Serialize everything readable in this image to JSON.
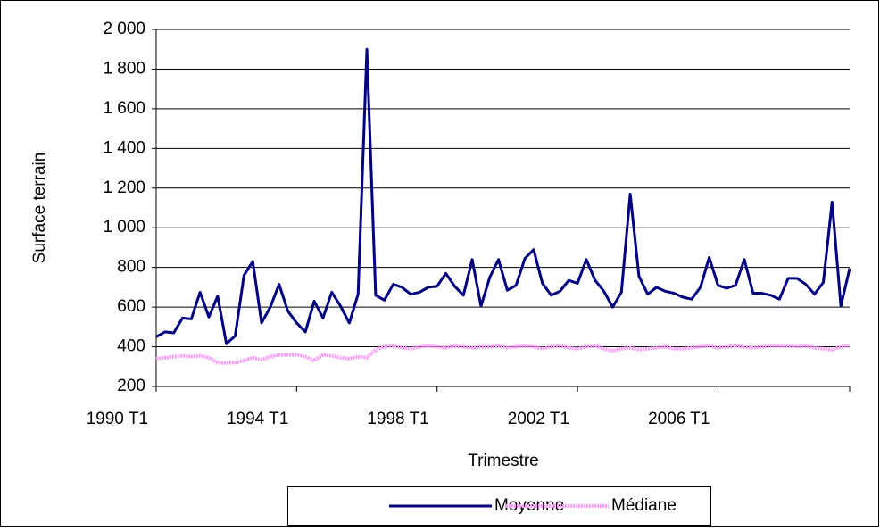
{
  "chart_data": {
    "type": "line",
    "x_label": "Trimestre",
    "y_label": "Surface terrain",
    "categories": [
      "1990 T1",
      null,
      null,
      null,
      null,
      null,
      null,
      null,
      null,
      null,
      null,
      null,
      null,
      null,
      null,
      null,
      "1994 T1",
      null,
      null,
      null,
      null,
      null,
      null,
      null,
      null,
      null,
      null,
      null,
      null,
      null,
      null,
      null,
      "1998 T1",
      null,
      null,
      null,
      null,
      null,
      null,
      null,
      null,
      null,
      null,
      null,
      null,
      null,
      null,
      null,
      "2002 T1",
      null,
      null,
      null,
      null,
      null,
      null,
      null,
      null,
      null,
      null,
      null,
      null,
      null,
      null,
      null,
      "2006 T1",
      null,
      null,
      null,
      null,
      null,
      null,
      null,
      null,
      null,
      null,
      null,
      null,
      null,
      null,
      null
    ],
    "series": [
      {
        "name": "Moyenne",
        "color": "#000080",
        "values": [
          450,
          475,
          470,
          545,
          540,
          675,
          550,
          655,
          415,
          455,
          760,
          830,
          520,
          600,
          715,
          580,
          520,
          475,
          630,
          545,
          675,
          605,
          520,
          665,
          1900,
          660,
          635,
          715,
          700,
          665,
          675,
          700,
          705,
          770,
          705,
          660,
          840,
          605,
          750,
          840,
          685,
          710,
          845,
          890,
          720,
          660,
          680,
          735,
          720,
          840,
          735,
          680,
          600,
          675,
          1170,
          755,
          665,
          700,
          680,
          670,
          650,
          640,
          700,
          850,
          710,
          695,
          710,
          840,
          670,
          670,
          660,
          640,
          745,
          745,
          715,
          665,
          725,
          1130,
          605,
          795
        ]
      },
      {
        "name": "Médiane",
        "color": "#ff99ff",
        "values": [
          340,
          345,
          350,
          355,
          350,
          355,
          345,
          320,
          318,
          320,
          330,
          345,
          335,
          350,
          360,
          360,
          360,
          350,
          330,
          360,
          355,
          345,
          340,
          350,
          345,
          385,
          400,
          405,
          395,
          390,
          400,
          405,
          400,
          395,
          405,
          400,
          395,
          400,
          400,
          405,
          395,
          400,
          405,
          400,
          390,
          400,
          405,
          395,
          390,
          400,
          405,
          390,
          380,
          390,
          395,
          385,
          390,
          395,
          400,
          390,
          390,
          395,
          400,
          405,
          395,
          400,
          405,
          400,
          395,
          400,
          405,
          405,
          405,
          400,
          405,
          395,
          390,
          385,
          400,
          405
        ]
      }
    ],
    "ylim": [
      200,
      2000
    ],
    "yticks": [
      200,
      400,
      600,
      800,
      {
        "value": 1000,
        "label": "1 000"
      },
      {
        "value": 1200,
        "label": "1 200"
      },
      {
        "value": 1400,
        "label": "1 400"
      },
      {
        "value": 1600,
        "label": "1 600"
      },
      {
        "value": 1800,
        "label": "1 800"
      },
      {
        "value": 2000,
        "label": "2 000"
      }
    ],
    "grid": true
  }
}
